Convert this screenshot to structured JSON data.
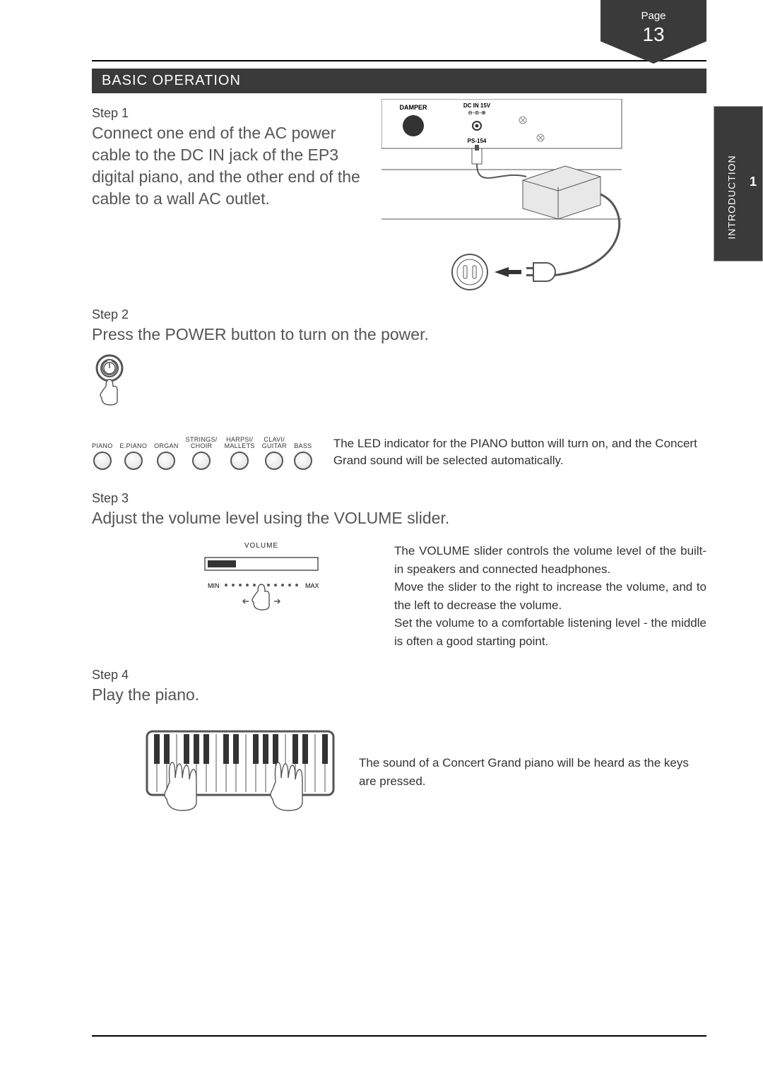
{
  "page": {
    "page_label": "Page",
    "page_number": "13",
    "side_tab_label": "INTRODUCTION",
    "side_tab_chapter": "1",
    "section_title": "BASIC OPERATION"
  },
  "step1": {
    "label": "Step 1",
    "body": "Connect one end of the AC power cable to the DC IN jack of the EP3 digital piano, and the other end of the cable to a wall AC outlet.",
    "damper_label": "DAMPER",
    "dcin_label": "DC IN 15V",
    "polarity_symbols": "⊖-⊛-⊕",
    "adapter_model": "PS-154"
  },
  "step2": {
    "label": "Step 2",
    "body": "Press the POWER button to turn on the power.",
    "buttons": [
      "PIANO",
      "E.PIANO",
      "ORGAN",
      "STRINGS/\nCHOIR",
      "HARPSI/\nMALLETS",
      "CLAVI/\nGUITAR",
      "BASS"
    ],
    "led_text": "The LED indicator for the PIANO button will turn on, and the Concert Grand sound will be selected automatically."
  },
  "step3": {
    "label": "Step 3",
    "body": "Adjust the volume level using the VOLUME slider.",
    "volume_label": "VOLUME",
    "min_label": "MIN",
    "max_label": "MAX",
    "desc": "The VOLUME slider controls the volume level of the built-in speakers and connected headphones.\nMove the slider to the right to increase the volume, and to the left to decrease the volume.\nSet the volume to a comfortable listening level - the middle is often a good starting point."
  },
  "step4": {
    "label": "Step 4",
    "body": "Play the piano.",
    "desc": "The sound of a Concert Grand piano will be heard as the keys are pressed."
  },
  "colors": {
    "dark": "#3a3a3a",
    "text_body": "#555555",
    "rule": "#000000"
  }
}
